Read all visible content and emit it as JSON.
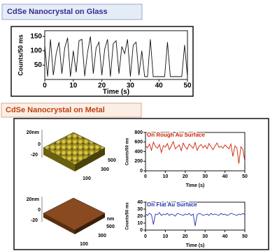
{
  "panels": [
    {
      "title": "CdSe Nanocrystal on Glass"
    },
    {
      "title": "CdSe Nanocrystal on Metal"
    }
  ],
  "afm": [
    {
      "z_labels": [
        "20nm",
        "0",
        "-20"
      ],
      "xy_labels": [
        "500",
        "300",
        "100"
      ]
    },
    {
      "z_labels": [
        "20nm",
        "0",
        "-20"
      ],
      "xy_labels": [
        "nm",
        "500",
        "300",
        "100"
      ]
    }
  ],
  "chart_data": [
    {
      "type": "line",
      "xlabel": "Time (s)",
      "ylabel": "Counts/50 ms",
      "x": [
        0,
        1,
        2,
        3,
        4,
        5,
        6,
        7,
        8,
        9,
        10,
        11,
        12,
        13,
        14,
        15,
        16,
        17,
        18,
        19,
        20,
        21,
        22,
        23,
        24,
        25,
        26,
        27,
        28,
        29,
        30,
        31,
        32,
        33,
        34,
        35,
        36,
        37,
        38,
        39,
        40,
        41,
        42,
        43,
        44,
        45,
        46,
        47,
        48,
        49,
        50
      ],
      "series": [
        {
          "color": "#111111",
          "values": [
            120,
            10,
            140,
            15,
            90,
            130,
            20,
            110,
            145,
            10,
            100,
            25,
            135,
            140,
            12,
            95,
            150,
            20,
            110,
            130,
            15,
            105,
            140,
            10,
            125,
            135,
            20,
            115,
            90,
            140,
            10,
            120,
            130,
            15,
            100,
            10,
            10,
            140,
            10,
            10,
            10,
            10,
            10,
            130,
            10,
            10,
            10,
            10,
            10,
            120,
            10
          ]
        }
      ],
      "xlim": [
        0,
        50
      ],
      "xticks": [
        0,
        10,
        20,
        30,
        40,
        50
      ],
      "ylim": [
        0,
        170
      ],
      "yticks": [
        50,
        100,
        150
      ]
    },
    {
      "type": "line",
      "title": "On Rough Au Surface",
      "xlabel": "Time (s)",
      "ylabel": "Counts/50 ms",
      "x": [
        0,
        1,
        2,
        3,
        4,
        5,
        6,
        7,
        8,
        9,
        10,
        11,
        12,
        13,
        14,
        15,
        16,
        17,
        18,
        19,
        20,
        21,
        22,
        23,
        24,
        25,
        26,
        27,
        28,
        29,
        30,
        31,
        32,
        33,
        34,
        35,
        36,
        37,
        38,
        39,
        40,
        41,
        42,
        43,
        44,
        45,
        46,
        47,
        48,
        49,
        50
      ],
      "series": [
        {
          "color": "#cc2200",
          "values": [
            520,
            480,
            560,
            430,
            600,
            510,
            470,
            550,
            380,
            530,
            490,
            570,
            440,
            520,
            610,
            460,
            500,
            540,
            420,
            580,
            500,
            450,
            560,
            520,
            470,
            590,
            430,
            510,
            550,
            480,
            530,
            460,
            570,
            500,
            440,
            520,
            580,
            490,
            510,
            470,
            540,
            500,
            460,
            560,
            300,
            520,
            480,
            150,
            500,
            450,
            200
          ]
        }
      ],
      "xlim": [
        0,
        50
      ],
      "xticks": [
        0,
        10,
        20,
        30,
        40,
        50
      ],
      "ylim": [
        0,
        800
      ],
      "yticks": [
        0,
        200,
        400,
        600,
        800
      ]
    },
    {
      "type": "line",
      "title": "On Flat Au Surface",
      "xlabel": "Time (s)",
      "ylabel": "Counts/50 ms",
      "x": [
        0,
        1,
        2,
        3,
        4,
        5,
        6,
        7,
        8,
        9,
        10,
        11,
        12,
        13,
        14,
        15,
        16,
        17,
        18,
        19,
        20,
        21,
        22,
        23,
        24,
        25,
        26,
        27,
        28,
        29,
        30,
        31,
        32,
        33,
        34,
        35,
        36,
        37,
        38,
        39,
        40,
        41,
        42,
        43,
        44,
        45,
        46,
        47,
        48,
        49,
        50
      ],
      "series": [
        {
          "color": "#2233aa",
          "values": [
            23,
            21,
            24,
            22,
            8,
            23,
            22,
            25,
            21,
            23,
            22,
            24,
            21,
            23,
            22,
            20,
            24,
            23,
            22,
            21,
            23,
            22,
            24,
            21,
            23,
            6,
            22,
            24,
            23,
            21,
            22,
            23,
            21,
            24,
            22,
            23,
            22,
            21,
            24,
            22,
            23,
            21,
            22,
            24,
            23,
            22,
            21,
            23,
            22,
            24,
            22
          ]
        }
      ],
      "xlim": [
        0,
        50
      ],
      "xticks": [
        0,
        10,
        20,
        30,
        40,
        50
      ],
      "ylim": [
        0,
        40
      ],
      "yticks": [
        0,
        10,
        20,
        30,
        40
      ]
    }
  ]
}
